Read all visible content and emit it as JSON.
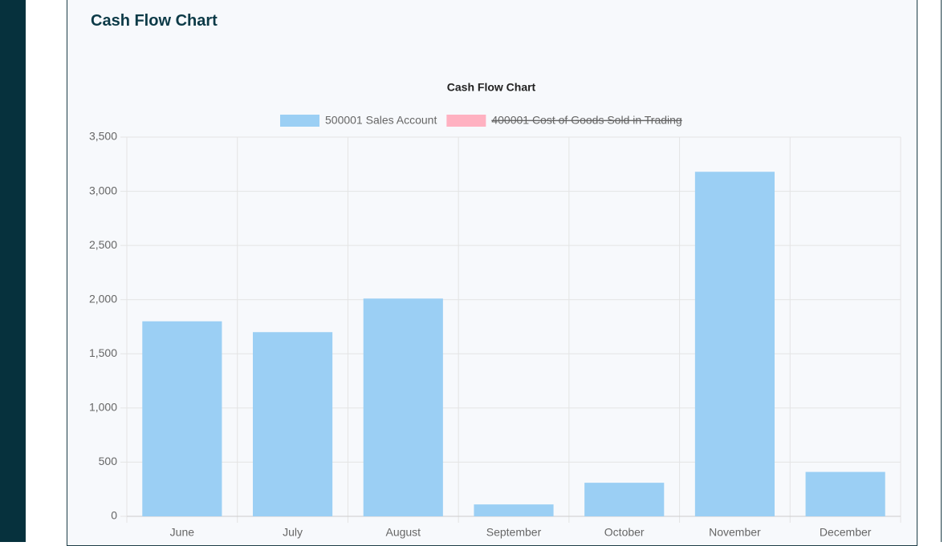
{
  "page": {
    "heading": "Cash Flow Chart"
  },
  "chart_data": {
    "type": "bar",
    "title": "Cash Flow Chart",
    "categories": [
      "June",
      "July",
      "August",
      "September",
      "October",
      "November",
      "December"
    ],
    "series": [
      {
        "name": "500001 Sales Account",
        "color": "#9bcff4",
        "values": [
          1800,
          1700,
          2010,
          110,
          310,
          3180,
          410
        ]
      },
      {
        "name": "400001 Cost of Goods Sold in Trading",
        "color": "#ffb1c1",
        "hidden": true,
        "values": [
          null,
          null,
          null,
          null,
          null,
          null,
          null
        ]
      }
    ],
    "ylim": [
      0,
      3500
    ],
    "yticks": [
      0,
      500,
      {
        "value": 1000,
        "label": "1,000"
      },
      {
        "value": 1500,
        "label": "1,500"
      },
      {
        "value": 2000,
        "label": "2,000"
      },
      {
        "value": 2500,
        "label": "2,500"
      },
      {
        "value": 3000,
        "label": "3,000"
      },
      {
        "value": 3500,
        "label": "3,500"
      }
    ],
    "grid": true,
    "legend": "top"
  }
}
